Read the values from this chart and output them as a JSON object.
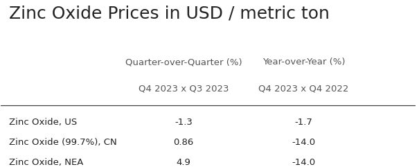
{
  "title": "Zinc Oxide Prices in USD / metric ton",
  "col_header1": "Quarter-over-Quarter (%)",
  "col_header2": "Year-over-Year (%)",
  "col_subheader1": "Q4 2023 x Q3 2023",
  "col_subheader2": "Q4 2023 x Q4 2022",
  "rows": [
    {
      "label": "Zinc Oxide, US",
      "qoq": "-1.3",
      "yoy": "-1.7"
    },
    {
      "label": "Zinc Oxide (99.7%), CN",
      "qoq": "0.86",
      "yoy": "-14.0"
    },
    {
      "label": "Zinc Oxide, NEA",
      "qoq": "4.9",
      "yoy": "-14.0"
    }
  ],
  "title_fontsize": 18,
  "header_fontsize": 9.5,
  "subheader_fontsize": 9.5,
  "row_fontsize": 9.5,
  "bg_color": "#ffffff",
  "text_color": "#222222",
  "header_color": "#555555",
  "line_color": "#333333"
}
